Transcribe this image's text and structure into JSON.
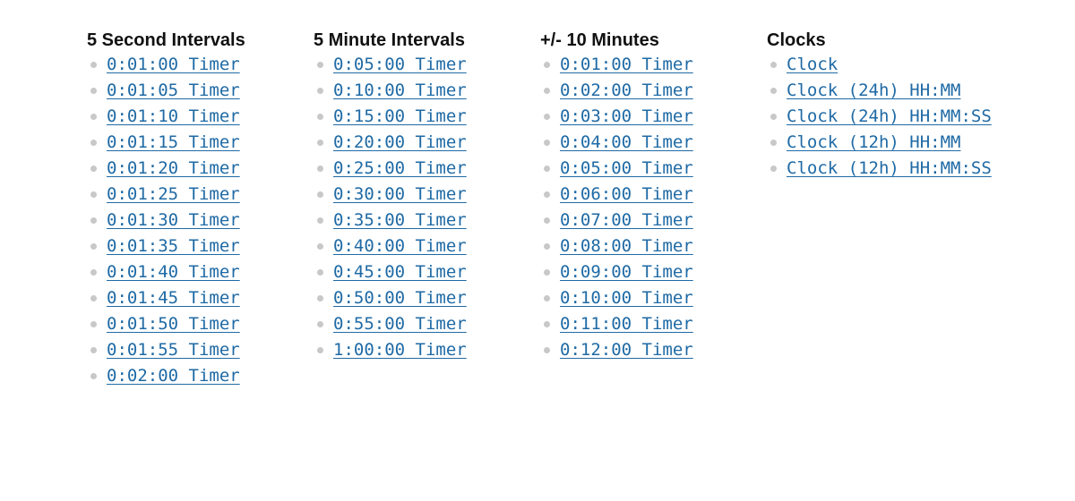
{
  "sections": [
    {
      "title": "5 Second Intervals",
      "links": [
        "0:01:00 Timer",
        "0:01:05 Timer",
        "0:01:10 Timer",
        "0:01:15 Timer",
        "0:01:20 Timer",
        "0:01:25 Timer",
        "0:01:30 Timer",
        "0:01:35 Timer",
        "0:01:40 Timer",
        "0:01:45 Timer",
        "0:01:50 Timer",
        "0:01:55 Timer",
        "0:02:00 Timer"
      ]
    },
    {
      "title": "5 Minute Intervals",
      "links": [
        "0:05:00 Timer",
        "0:10:00 Timer",
        "0:15:00 Timer",
        "0:20:00 Timer",
        "0:25:00 Timer",
        "0:30:00 Timer",
        "0:35:00 Timer",
        "0:40:00 Timer",
        "0:45:00 Timer",
        "0:50:00 Timer",
        "0:55:00 Timer",
        "1:00:00 Timer"
      ]
    },
    {
      "title": "+/- 10 Minutes",
      "links": [
        "0:01:00 Timer",
        "0:02:00 Timer",
        "0:03:00 Timer",
        "0:04:00 Timer",
        "0:05:00 Timer",
        "0:06:00 Timer",
        "0:07:00 Timer",
        "0:08:00 Timer",
        "0:09:00 Timer",
        "0:10:00 Timer",
        "0:11:00 Timer",
        "0:12:00 Timer"
      ]
    },
    {
      "title": "Clocks",
      "links": [
        "Clock",
        "Clock (24h) HH:MM",
        "Clock (24h) HH:MM:SS",
        "Clock (12h) HH:MM",
        "Clock (12h) HH:MM:SS"
      ]
    }
  ],
  "colors": {
    "link": "#1f6aa5",
    "heading": "#111111",
    "bullet": "#c8c8c8",
    "background": "#ffffff"
  }
}
